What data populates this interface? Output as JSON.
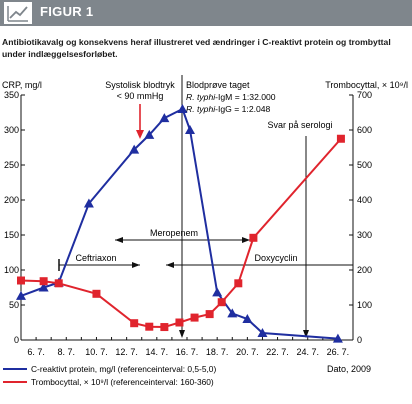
{
  "figure": {
    "label": "FIGUR 1",
    "caption": "Antibiotikavalg og konsekvens heraf illustreret ved ændringer i C-reaktivt protein og trombyttal under indlæggelsesforløbet."
  },
  "chart_data": {
    "type": "line",
    "x": [
      "2009-07-05",
      "2009-07-06",
      "2009-07-08",
      "2009-07-10",
      "2009-07-13",
      "2009-07-14",
      "2009-07-15",
      "2009-07-16",
      "2009-07-17",
      "2009-07-18",
      "2009-07-19",
      "2009-07-20",
      "2009-07-21",
      "2009-07-26"
    ],
    "x_ticks": [
      "6. 7.",
      "8. 7.",
      "10. 7.",
      "12. 7.",
      "14. 7.",
      "16. 7.",
      "18. 7.",
      "20. 7.",
      "22. 7.",
      "24. 7.",
      "26. 7."
    ],
    "xlabel": "Dato, 2009",
    "y_left": {
      "label": "CRP, mg/l",
      "range": [
        0,
        350
      ],
      "ticks": [
        0,
        50,
        100,
        150,
        200,
        250,
        300,
        350
      ]
    },
    "y_right": {
      "label": "Trombocyttal, × 10⁹/l",
      "range": [
        0,
        700
      ],
      "ticks": [
        0,
        100,
        200,
        300,
        400,
        500,
        600,
        700
      ]
    },
    "series": [
      {
        "name": "C-reaktivt protein, mg/l (referenceinterval: 0,5-5,0)",
        "axis": "left",
        "color": "#1f2ea0",
        "marker": "triangle",
        "points": [
          [
            "2009-07-05",
            63
          ],
          [
            "2009-07-06.5",
            75
          ],
          [
            "2009-07-07.5",
            82
          ],
          [
            "2009-07-09.5",
            195
          ],
          [
            "2009-07-12.5",
            272
          ],
          [
            "2009-07-13.5",
            293
          ],
          [
            "2009-07-14.5",
            317
          ],
          [
            "2009-07-15.7",
            330
          ],
          [
            "2009-07-16.2",
            300
          ],
          [
            "2009-07-18",
            68
          ],
          [
            "2009-07-19",
            38
          ],
          [
            "2009-07-20",
            30
          ],
          [
            "2009-07-21",
            10
          ],
          [
            "2009-07-26",
            2
          ]
        ]
      },
      {
        "name": "Trombocyttal, × 10⁹/l (referenceinterval: 160-360)",
        "axis": "right",
        "color": "#e0242d",
        "marker": "square",
        "points": [
          [
            "2009-07-05",
            170
          ],
          [
            "2009-07-06.5",
            168
          ],
          [
            "2009-07-07.5",
            162
          ],
          [
            "2009-07-10",
            132
          ],
          [
            "2009-07-12.5",
            48
          ],
          [
            "2009-07-13.5",
            38
          ],
          [
            "2009-07-14.5",
            37
          ],
          [
            "2009-07-15.5",
            50
          ],
          [
            "2009-07-16.5",
            64
          ],
          [
            "2009-07-17.5",
            74
          ],
          [
            "2009-07-18.3",
            108
          ],
          [
            "2009-07-19.4",
            162
          ],
          [
            "2009-07-20.4",
            292
          ],
          [
            "2009-07-26.2",
            575
          ]
        ]
      }
    ],
    "annotations": {
      "systolic": "Systolisk blodtryk",
      "systolic2": "< 90 mmHg",
      "blood": "Blodprøve taget",
      "igm_italic": "R. typhi",
      "igm_rest": "-IgM = 1:32.000",
      "igg_italic": "R. typhi",
      "igg_rest": "-IgG = 1:2.048",
      "serology": "Svar på serologi",
      "ceftriaxon": "Ceftriaxon",
      "meropenem": "Meropenem",
      "doxycyclin": "Doxycyclin"
    },
    "legend": {
      "crp": "C-reaktivt protein, mg/l (referenceinterval: 0,5-5,0)",
      "plt": "Trombocyttal, × 10⁹/l (referenceinterval: 160-360)"
    },
    "grid": false
  }
}
